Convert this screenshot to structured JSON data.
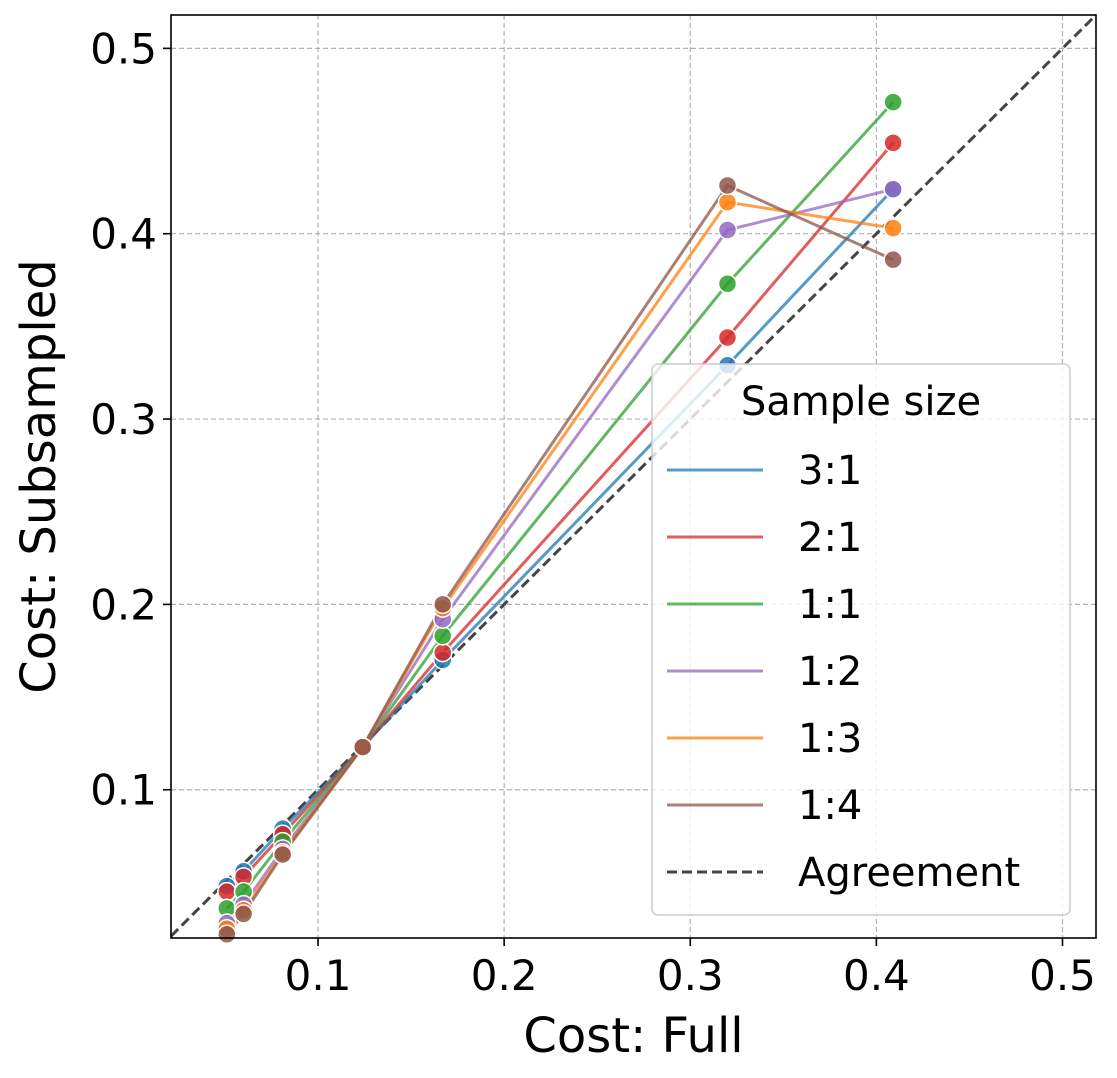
{
  "chart_data": {
    "type": "line",
    "xlabel": "Cost: Full",
    "ylabel": "Cost: Subsampled",
    "xlim": [
      0.021,
      0.518
    ],
    "ylim": [
      0.02,
      0.518
    ],
    "grid": true,
    "x_ticks": [
      0.1,
      0.2,
      0.3,
      0.4,
      0.5
    ],
    "y_ticks": [
      0.1,
      0.2,
      0.3,
      0.4,
      0.5
    ],
    "x_tick_labels": [
      "0.1",
      "0.2",
      "0.3",
      "0.4",
      "0.5"
    ],
    "y_tick_labels": [
      "0.1",
      "0.2",
      "0.3",
      "0.4",
      "0.5"
    ],
    "legend": {
      "title": "Sample size",
      "placement": "lower right",
      "agreement_label": "Agreement"
    },
    "x": [
      0.051,
      0.06,
      0.081,
      0.124,
      0.167,
      0.32,
      0.409
    ],
    "series": [
      {
        "name": "3:1",
        "color": "#1f77b4",
        "values": [
          0.048,
          0.056,
          0.079,
          0.123,
          0.17,
          0.329,
          0.424
        ]
      },
      {
        "name": "2:1",
        "color": "#d62728",
        "values": [
          0.045,
          0.053,
          0.076,
          0.123,
          0.174,
          0.344,
          0.449
        ]
      },
      {
        "name": "1:1",
        "color": "#2ca02c",
        "values": [
          0.036,
          0.045,
          0.072,
          0.123,
          0.183,
          0.373,
          0.471
        ]
      },
      {
        "name": "1:2",
        "color": "#9467bd",
        "values": [
          0.028,
          0.038,
          0.068,
          0.123,
          0.192,
          0.402,
          0.424
        ]
      },
      {
        "name": "1:3",
        "color": "#ff7f0e",
        "values": [
          0.025,
          0.035,
          0.066,
          0.123,
          0.198,
          0.417,
          0.403
        ]
      },
      {
        "name": "1:4",
        "color": "#8c564b",
        "values": [
          0.022,
          0.033,
          0.065,
          0.123,
          0.2,
          0.426,
          0.386
        ]
      }
    ],
    "agreement_line": {
      "color": "#444444",
      "style": "dashed"
    }
  }
}
